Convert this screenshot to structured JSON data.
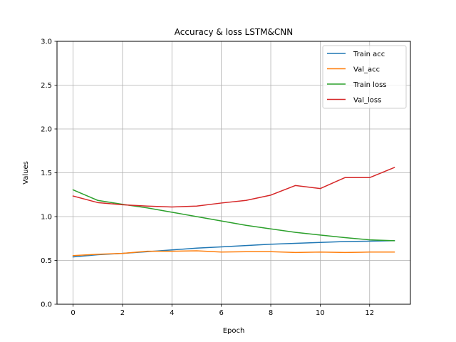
{
  "chart_data": {
    "type": "line",
    "title": "Accuracy & loss LSTM&CNN",
    "xlabel": "Epoch",
    "ylabel": "Values",
    "x": [
      0,
      1,
      2,
      3,
      4,
      5,
      6,
      7,
      8,
      9,
      10,
      11,
      12,
      13
    ],
    "xlim": [
      -0.65,
      13.65
    ],
    "ylim": [
      0,
      3
    ],
    "xticks": [
      0,
      2,
      4,
      6,
      8,
      10,
      12
    ],
    "yticks": [
      0.0,
      0.5,
      1.0,
      1.5,
      2.0,
      2.5,
      3.0
    ],
    "xtick_labels": [
      "0",
      "2",
      "4",
      "6",
      "8",
      "10",
      "12"
    ],
    "ytick_labels": [
      "0.0",
      "0.5",
      "1.0",
      "1.5",
      "2.0",
      "2.5",
      "3.0"
    ],
    "grid": true,
    "legend_position": "top-right",
    "series": [
      {
        "name": "Train acc",
        "color": "#1f77b4",
        "values": [
          0.54,
          0.565,
          0.58,
          0.6,
          0.62,
          0.64,
          0.655,
          0.67,
          0.685,
          0.695,
          0.705,
          0.715,
          0.72,
          0.725
        ]
      },
      {
        "name": "Val_acc",
        "color": "#ff7f0e",
        "values": [
          0.555,
          0.57,
          0.58,
          0.605,
          0.605,
          0.61,
          0.595,
          0.6,
          0.6,
          0.59,
          0.595,
          0.59,
          0.595,
          0.595
        ]
      },
      {
        "name": "Train loss",
        "color": "#2ca02c",
        "values": [
          1.305,
          1.185,
          1.14,
          1.1,
          1.05,
          1.0,
          0.95,
          0.9,
          0.86,
          0.82,
          0.79,
          0.76,
          0.735,
          0.725
        ]
      },
      {
        "name": "Val_loss",
        "color": "#d62728",
        "values": [
          1.235,
          1.16,
          1.135,
          1.12,
          1.11,
          1.12,
          1.155,
          1.185,
          1.245,
          1.355,
          1.32,
          1.445,
          1.445,
          1.56
        ]
      }
    ]
  }
}
